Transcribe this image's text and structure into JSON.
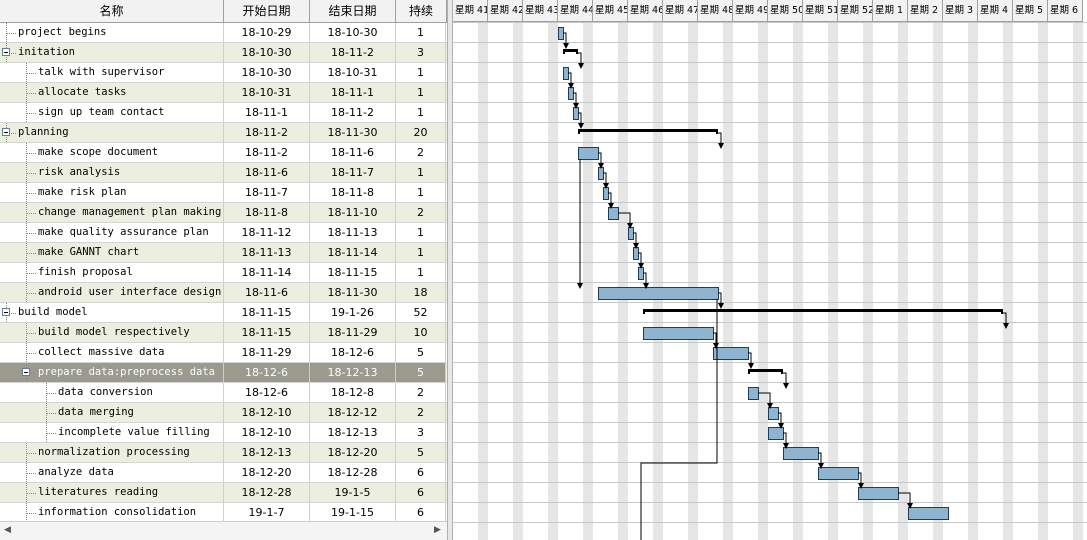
{
  "columns": {
    "name": "名称",
    "start": "开始日期",
    "end": "结束日期",
    "duration": "持续"
  },
  "tasks": [
    {
      "name": "project begins",
      "start": "18-10-29",
      "end": "18-10-30",
      "dur": "1",
      "level": 0,
      "group": false
    },
    {
      "name": "initation",
      "start": "18-10-30",
      "end": "18-11-2",
      "dur": "3",
      "level": 0,
      "group": true
    },
    {
      "name": "talk with supervisor",
      "start": "18-10-30",
      "end": "18-10-31",
      "dur": "1",
      "level": 1,
      "group": false
    },
    {
      "name": "allocate tasks",
      "start": "18-10-31",
      "end": "18-11-1",
      "dur": "1",
      "level": 1,
      "group": false
    },
    {
      "name": "sign up team contact",
      "start": "18-11-1",
      "end": "18-11-2",
      "dur": "1",
      "level": 1,
      "group": false
    },
    {
      "name": "planning",
      "start": "18-11-2",
      "end": "18-11-30",
      "dur": "20",
      "level": 0,
      "group": true
    },
    {
      "name": "make scope document",
      "start": "18-11-2",
      "end": "18-11-6",
      "dur": "2",
      "level": 1,
      "group": false
    },
    {
      "name": "risk analysis",
      "start": "18-11-6",
      "end": "18-11-7",
      "dur": "1",
      "level": 1,
      "group": false
    },
    {
      "name": "make risk plan",
      "start": "18-11-7",
      "end": "18-11-8",
      "dur": "1",
      "level": 1,
      "group": false
    },
    {
      "name": "change management plan making",
      "start": "18-11-8",
      "end": "18-11-10",
      "dur": "2",
      "level": 1,
      "group": false
    },
    {
      "name": "make quality assurance plan",
      "start": "18-11-12",
      "end": "18-11-13",
      "dur": "1",
      "level": 1,
      "group": false
    },
    {
      "name": "make GANNT chart",
      "start": "18-11-13",
      "end": "18-11-14",
      "dur": "1",
      "level": 1,
      "group": false
    },
    {
      "name": "finish proposal",
      "start": "18-11-14",
      "end": "18-11-15",
      "dur": "1",
      "level": 1,
      "group": false
    },
    {
      "name": "android user interface design",
      "start": "18-11-6",
      "end": "18-11-30",
      "dur": "18",
      "level": 1,
      "group": false
    },
    {
      "name": "build model",
      "start": "18-11-15",
      "end": "19-1-26",
      "dur": "52",
      "level": 0,
      "group": true
    },
    {
      "name": "build model respectively",
      "start": "18-11-15",
      "end": "18-11-29",
      "dur": "10",
      "level": 1,
      "group": false
    },
    {
      "name": "collect massive data",
      "start": "18-11-29",
      "end": "18-12-6",
      "dur": "5",
      "level": 1,
      "group": false
    },
    {
      "name": "prepare data:preprocess data",
      "start": "18-12-6",
      "end": "18-12-13",
      "dur": "5",
      "level": 1,
      "group": true,
      "selected": true
    },
    {
      "name": "data conversion",
      "start": "18-12-6",
      "end": "18-12-8",
      "dur": "2",
      "level": 2,
      "group": false
    },
    {
      "name": "data merging",
      "start": "18-12-10",
      "end": "18-12-12",
      "dur": "2",
      "level": 2,
      "group": false
    },
    {
      "name": "incomplete value filling",
      "start": "18-12-10",
      "end": "18-12-13",
      "dur": "3",
      "level": 2,
      "group": false
    },
    {
      "name": "normalization processing",
      "start": "18-12-13",
      "end": "18-12-20",
      "dur": "5",
      "level": 1,
      "group": false
    },
    {
      "name": "analyze data",
      "start": "18-12-20",
      "end": "18-12-28",
      "dur": "6",
      "level": 1,
      "group": false
    },
    {
      "name": "literatures reading",
      "start": "18-12-28",
      "end": "19-1-5",
      "dur": "6",
      "level": 1,
      "group": false
    },
    {
      "name": "information consolidation",
      "start": "19-1-7",
      "end": "19-1-15",
      "dur": "6",
      "level": 1,
      "group": false
    }
  ],
  "weeks": [
    "星期 41",
    "星期 42",
    "星期 43",
    "星期 44",
    "星期 45",
    "星期 46",
    "星期 47",
    "星期 48",
    "星期 49",
    "星期 50",
    "星期 51",
    "星期 52",
    "星期 1",
    "星期 2",
    "星期 3",
    "星期 4",
    "星期 5",
    "星期 6"
  ],
  "chart_origin_date": "18-10-08",
  "colors": {
    "bar": "#8fb4cf",
    "bar_border": "#1f3b55",
    "summary": "#000000",
    "weekend": "#e6e6e6",
    "grid_line": "#c8c8c8"
  }
}
